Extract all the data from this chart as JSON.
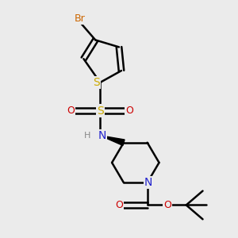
{
  "bg_color": "#ebebeb",
  "bond_color": "#000000",
  "bond_width": 1.8,
  "atom_colors": {
    "Br": "#cc6600",
    "S": "#ccaa00",
    "N": "#2222cc",
    "O": "#cc0000",
    "H": "#888888",
    "C": "#000000"
  },
  "figsize": [
    3.0,
    3.0
  ],
  "dpi": 100
}
